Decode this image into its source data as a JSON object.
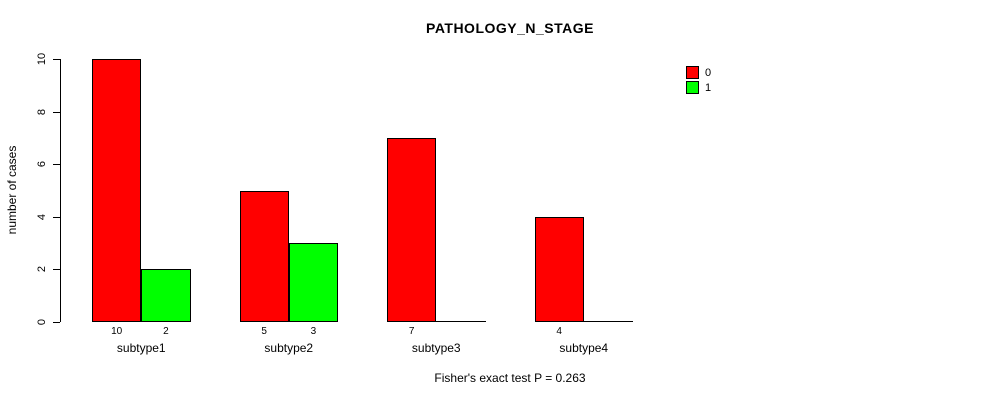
{
  "title": "PATHOLOGY_N_STAGE",
  "footer": "Fisher's exact test P = 0.263",
  "y_axis": {
    "label": "number of cases",
    "ticks": [
      0,
      2,
      4,
      6,
      8,
      10
    ]
  },
  "legend": {
    "position": "top-right",
    "items": [
      {
        "label": "0",
        "color": "#FF0000"
      },
      {
        "label": "1",
        "color": "#00FF00"
      }
    ]
  },
  "chart_data": {
    "type": "bar",
    "title": "PATHOLOGY_N_STAGE",
    "xlabel": "",
    "ylabel": "number of cases",
    "ylim": [
      0,
      10
    ],
    "yticks": [
      0,
      2,
      4,
      6,
      8,
      10
    ],
    "grid": false,
    "legend_position": "top-right",
    "categories": [
      "subtype1",
      "subtype2",
      "subtype3",
      "subtype4"
    ],
    "series": [
      {
        "name": "0",
        "color": "#FF0000",
        "values": [
          10,
          5,
          7,
          4
        ]
      },
      {
        "name": "1",
        "color": "#00FF00",
        "values": [
          2,
          3,
          0,
          0
        ]
      }
    ],
    "bar_value_labels": [
      "10",
      "2",
      "5",
      "3",
      "7",
      "4"
    ],
    "annotation": "Fisher's exact test P = 0.263"
  }
}
